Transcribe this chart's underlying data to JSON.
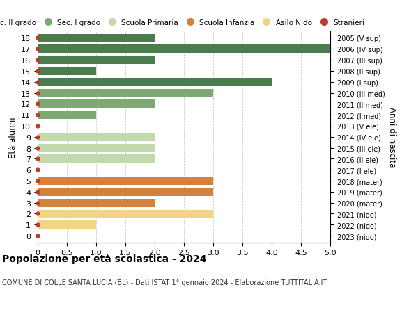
{
  "ages": [
    18,
    17,
    16,
    15,
    14,
    13,
    12,
    11,
    10,
    9,
    8,
    7,
    6,
    5,
    4,
    3,
    2,
    1,
    0
  ],
  "years": [
    "2005 (V sup)",
    "2006 (IV sup)",
    "2007 (III sup)",
    "2008 (II sup)",
    "2009 (I sup)",
    "2010 (III med)",
    "2011 (II med)",
    "2012 (I med)",
    "2013 (V ele)",
    "2014 (IV ele)",
    "2015 (III ele)",
    "2016 (II ele)",
    "2017 (I ele)",
    "2018 (mater)",
    "2019 (mater)",
    "2020 (mater)",
    "2021 (nido)",
    "2022 (nido)",
    "2023 (nido)"
  ],
  "values": [
    2,
    5,
    2,
    1,
    4,
    3,
    2,
    1,
    0,
    2,
    2,
    2,
    0,
    3,
    3,
    2,
    3,
    1,
    0
  ],
  "colors": [
    "#4a7c4e",
    "#4a7c4e",
    "#4a7c4e",
    "#4a7c4e",
    "#4a7c4e",
    "#7daa73",
    "#7daa73",
    "#7daa73",
    "#c2d9aa",
    "#c2d9aa",
    "#c2d9aa",
    "#c2d9aa",
    "#c2d9aa",
    "#d4813e",
    "#d4813e",
    "#d4813e",
    "#f2d580",
    "#f2d580",
    "#f2d580"
  ],
  "legend_labels": [
    "Sec. II grado",
    "Sec. I grado",
    "Scuola Primaria",
    "Scuola Infanzia",
    "Asilo Nido",
    "Stranieri"
  ],
  "legend_colors": [
    "#4a7c4e",
    "#7daa73",
    "#c2d9aa",
    "#d4813e",
    "#f2d580",
    "#c0392b"
  ],
  "ylabel": "Età alunni",
  "right_ylabel": "Anni di nascita",
  "title": "Popolazione per età scolastica - 2024",
  "subtitle": "COMUNE DI COLLE SANTA LUCIA (BL) - Dati ISTAT 1° gennaio 2024 - Elaborazione TUTTITALIA.IT",
  "xlim": [
    0,
    5.0
  ],
  "xticks": [
    0,
    0.5,
    1.0,
    1.5,
    2.0,
    2.5,
    3.0,
    3.5,
    4.0,
    4.5,
    5.0
  ],
  "dot_color": "#c0392b",
  "bg_color": "#ffffff",
  "bar_height": 0.75,
  "grid_color": "#cccccc"
}
